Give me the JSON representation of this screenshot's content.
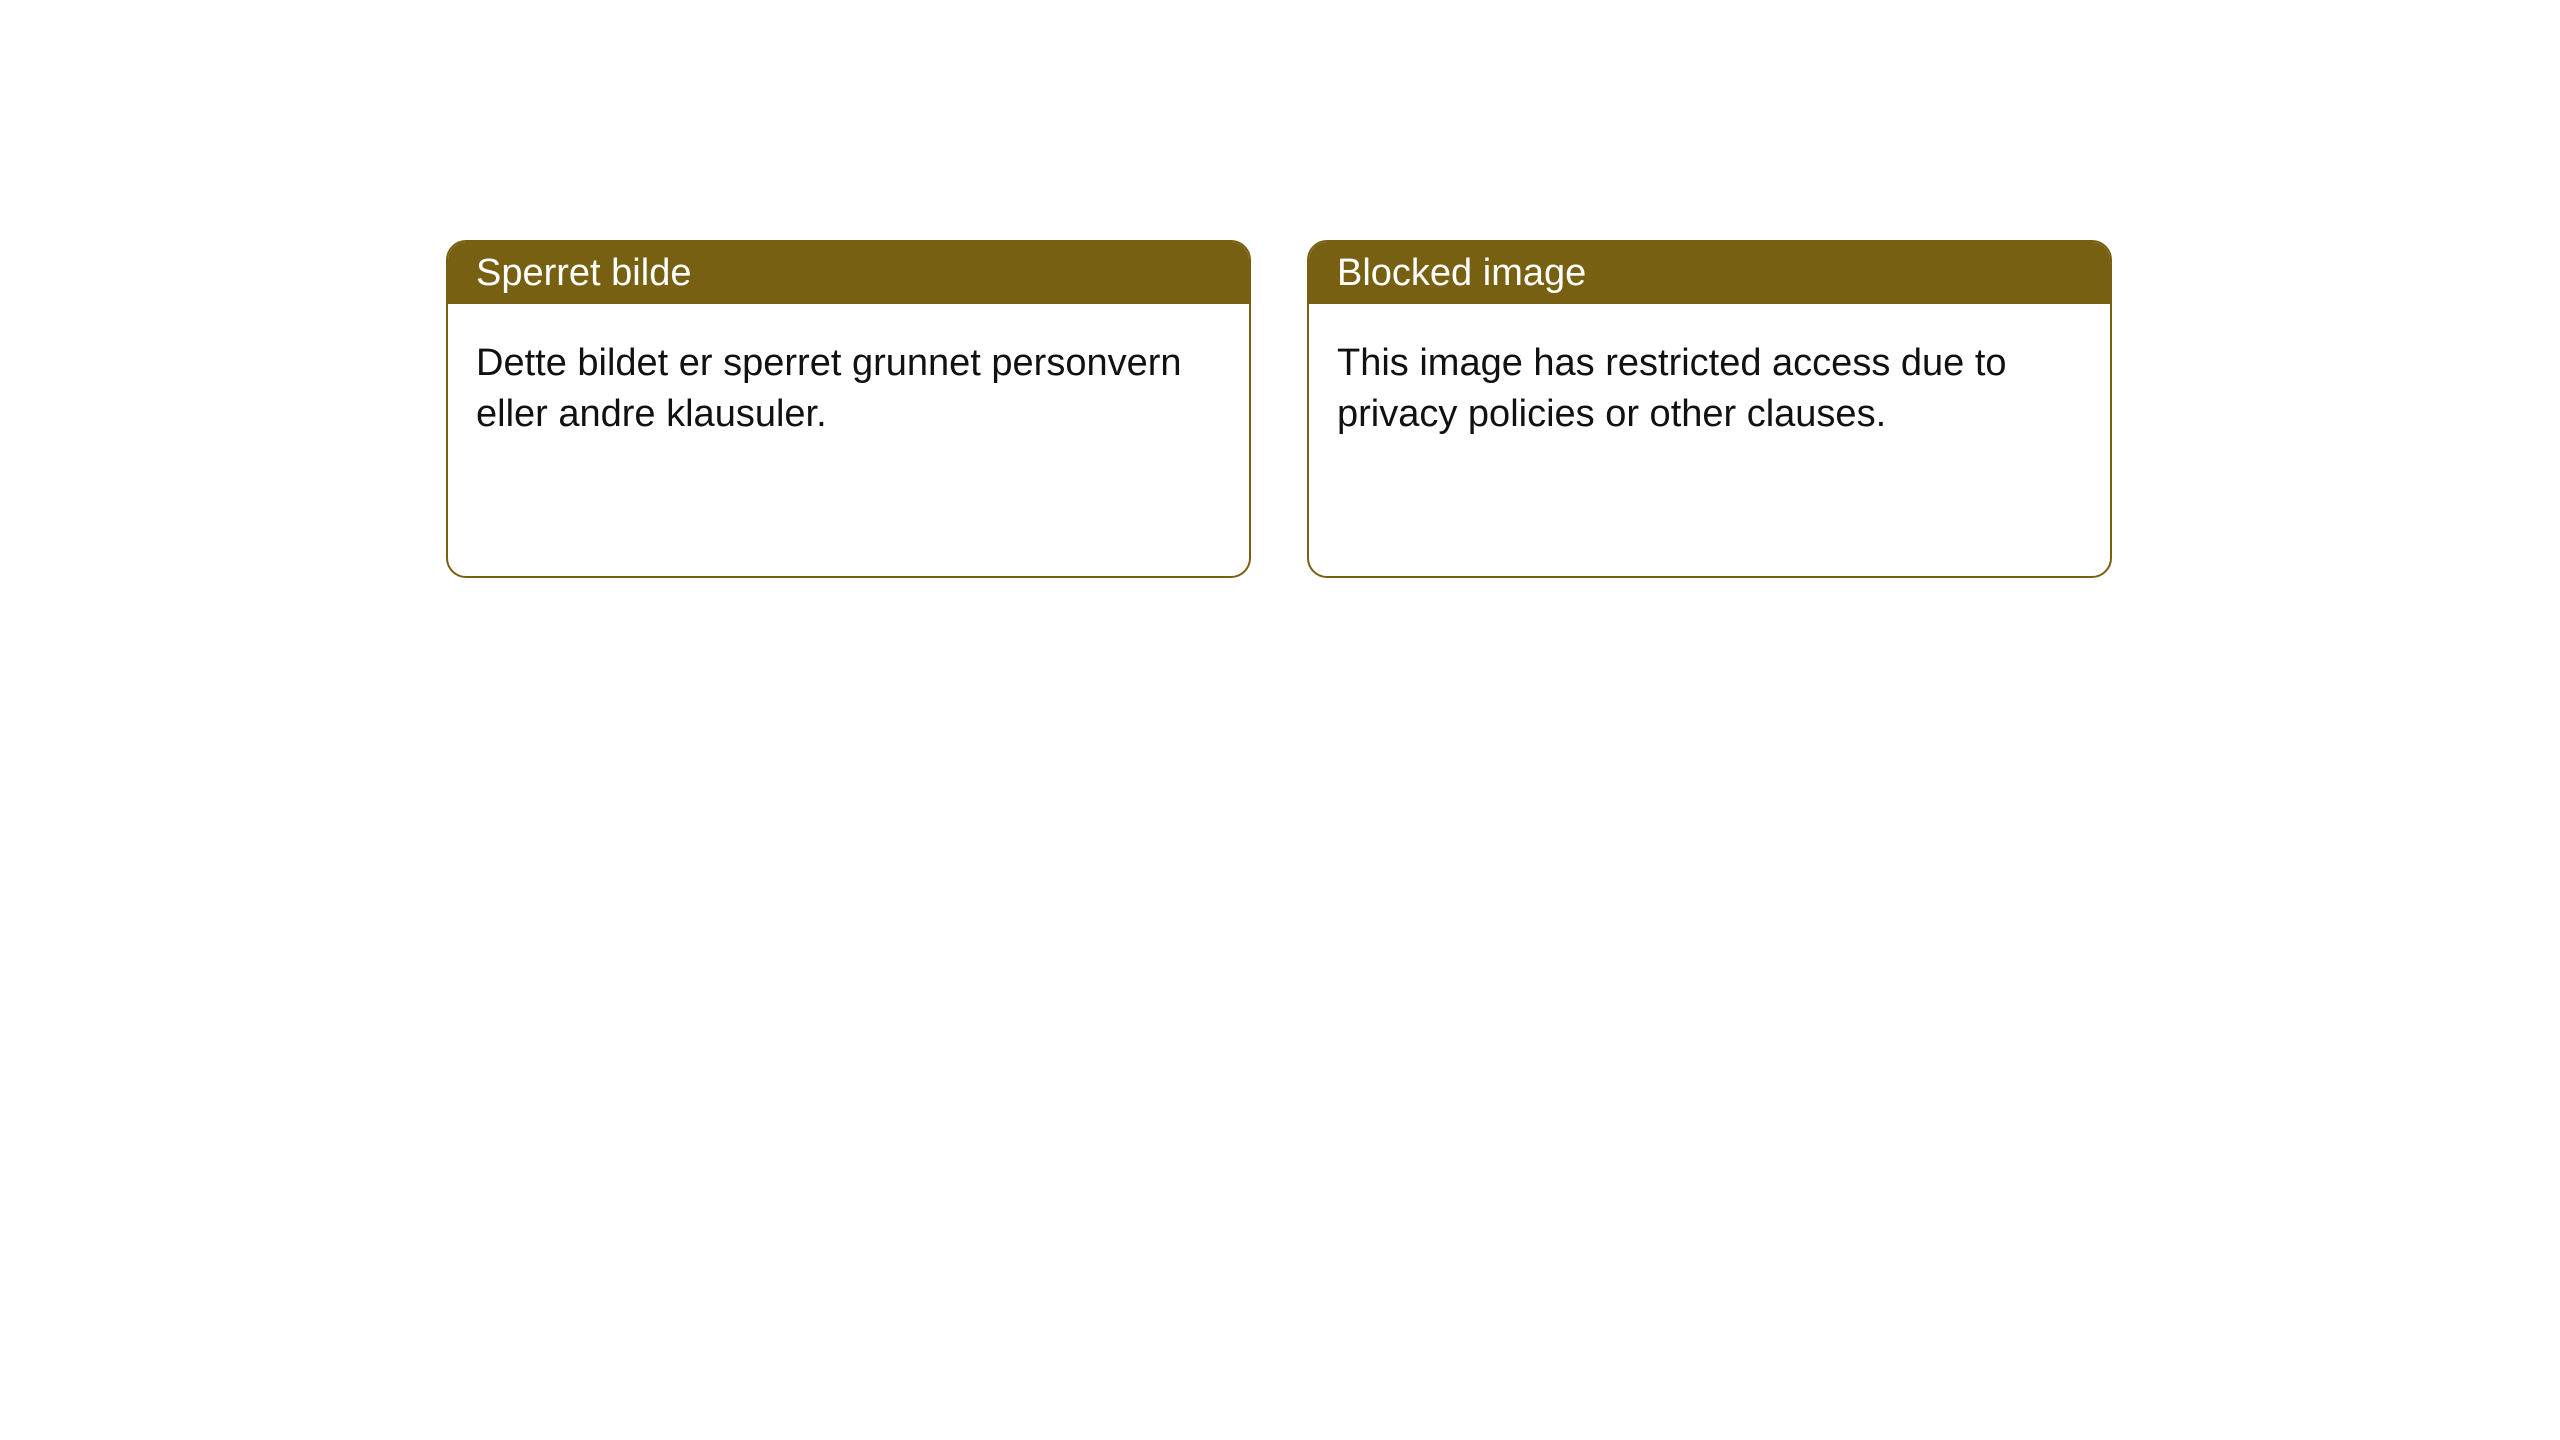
{
  "notices": [
    {
      "title": "Sperret bilde",
      "message": "Dette bildet er sperret grunnet personvern eller andre klausuler."
    },
    {
      "title": "Blocked image",
      "message": "This image has restricted access due to privacy policies or other clauses."
    }
  ],
  "styles": {
    "header_bg": "#786012",
    "border_color": "#786012",
    "card_bg": "#ffffff",
    "page_bg": "#ffffff",
    "title_color": "#ffffff",
    "text_color": "#111111",
    "border_radius": 20,
    "title_fontsize": 38,
    "body_fontsize": 38
  }
}
